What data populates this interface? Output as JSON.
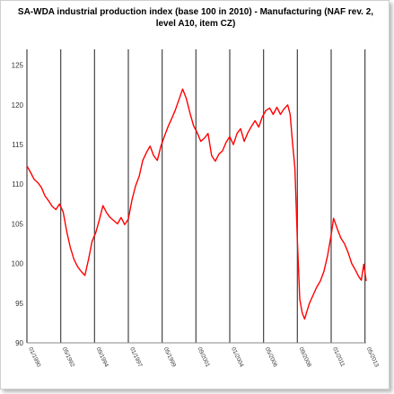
{
  "chart_data": {
    "type": "line",
    "title": "SA-WDA industrial production index (base 100 in 2010) - Manufacturing (NAF rev. 2, level A10, item CZ)",
    "xlabel": "",
    "ylabel": "",
    "ylim": [
      90,
      127
    ],
    "yticks": [
      90,
      95,
      100,
      105,
      110,
      115,
      120,
      125
    ],
    "x_range": [
      "1990-01",
      "2013-06"
    ],
    "xticks": [
      {
        "label": "01/1990",
        "date": "1990-01"
      },
      {
        "label": "05/1992",
        "date": "1992-05"
      },
      {
        "label": "09/1994",
        "date": "1994-09"
      },
      {
        "label": "01/1997",
        "date": "1997-01"
      },
      {
        "label": "05/1999",
        "date": "1999-05"
      },
      {
        "label": "09/2001",
        "date": "2001-09"
      },
      {
        "label": "01/2004",
        "date": "2004-01"
      },
      {
        "label": "05/2006",
        "date": "2006-05"
      },
      {
        "label": "09/2008",
        "date": "2008-09"
      },
      {
        "label": "01/2011",
        "date": "2011-01"
      },
      {
        "label": "05/2013",
        "date": "2013-05"
      }
    ],
    "grid": {
      "vertical": true,
      "horizontal": false
    },
    "legend": "none",
    "series": [
      {
        "color": "#ff0000",
        "points": [
          [
            "1990-01",
            112.3
          ],
          [
            "1990-04",
            111.5
          ],
          [
            "1990-07",
            110.6
          ],
          [
            "1990-10",
            110.2
          ],
          [
            "1991-01",
            109.6
          ],
          [
            "1991-04",
            108.5
          ],
          [
            "1991-07",
            107.9
          ],
          [
            "1991-10",
            107.2
          ],
          [
            "1992-01",
            106.8
          ],
          [
            "1992-04",
            107.5
          ],
          [
            "1992-07",
            106.5
          ],
          [
            "1992-10",
            104.0
          ],
          [
            "1993-01",
            102.0
          ],
          [
            "1993-04",
            100.5
          ],
          [
            "1993-07",
            99.6
          ],
          [
            "1993-10",
            99.0
          ],
          [
            "1994-01",
            98.5
          ],
          [
            "1994-04",
            100.5
          ],
          [
            "1994-07",
            102.8
          ],
          [
            "1994-10",
            103.9
          ],
          [
            "1995-01",
            105.5
          ],
          [
            "1995-04",
            107.3
          ],
          [
            "1995-07",
            106.4
          ],
          [
            "1995-10",
            105.8
          ],
          [
            "1996-01",
            105.4
          ],
          [
            "1996-04",
            105.0
          ],
          [
            "1996-07",
            105.8
          ],
          [
            "1996-10",
            104.9
          ],
          [
            "1997-01",
            105.6
          ],
          [
            "1997-04",
            108.0
          ],
          [
            "1997-07",
            109.8
          ],
          [
            "1997-10",
            111.0
          ],
          [
            "1998-01",
            113.0
          ],
          [
            "1998-04",
            114.0
          ],
          [
            "1998-07",
            114.8
          ],
          [
            "1998-10",
            113.6
          ],
          [
            "1999-01",
            113.0
          ],
          [
            "1999-04",
            114.8
          ],
          [
            "1999-07",
            116.1
          ],
          [
            "1999-10",
            117.3
          ],
          [
            "2000-01",
            118.3
          ],
          [
            "2000-04",
            119.4
          ],
          [
            "2000-07",
            120.7
          ],
          [
            "2000-10",
            122.0
          ],
          [
            "2001-01",
            120.8
          ],
          [
            "2001-04",
            119.0
          ],
          [
            "2001-07",
            117.4
          ],
          [
            "2001-10",
            116.5
          ],
          [
            "2002-01",
            115.4
          ],
          [
            "2002-04",
            115.8
          ],
          [
            "2002-07",
            116.4
          ],
          [
            "2002-10",
            113.6
          ],
          [
            "2003-01",
            112.9
          ],
          [
            "2003-04",
            113.8
          ],
          [
            "2003-07",
            114.2
          ],
          [
            "2003-10",
            115.3
          ],
          [
            "2004-01",
            116.0
          ],
          [
            "2004-04",
            115.0
          ],
          [
            "2004-07",
            116.4
          ],
          [
            "2004-10",
            117.0
          ],
          [
            "2005-01",
            115.4
          ],
          [
            "2005-04",
            116.5
          ],
          [
            "2005-07",
            117.3
          ],
          [
            "2005-10",
            118.0
          ],
          [
            "2006-01",
            117.2
          ],
          [
            "2006-04",
            118.5
          ],
          [
            "2006-07",
            119.3
          ],
          [
            "2006-10",
            119.6
          ],
          [
            "2007-01",
            118.8
          ],
          [
            "2007-04",
            119.7
          ],
          [
            "2007-07",
            118.8
          ],
          [
            "2007-10",
            119.5
          ],
          [
            "2008-01",
            120.0
          ],
          [
            "2008-03",
            118.8
          ],
          [
            "2008-05",
            115.3
          ],
          [
            "2008-07",
            112.0
          ],
          [
            "2008-09",
            103.0
          ],
          [
            "2008-11",
            95.5
          ],
          [
            "2009-01",
            93.8
          ],
          [
            "2009-03",
            93.0
          ],
          [
            "2009-07",
            95.0
          ],
          [
            "2009-10",
            96.0
          ],
          [
            "2010-01",
            97.0
          ],
          [
            "2010-04",
            97.8
          ],
          [
            "2010-07",
            99.0
          ],
          [
            "2010-10",
            101.0
          ],
          [
            "2011-01",
            103.6
          ],
          [
            "2011-03",
            105.7
          ],
          [
            "2011-06",
            104.4
          ],
          [
            "2011-09",
            103.2
          ],
          [
            "2011-12",
            102.5
          ],
          [
            "2012-03",
            101.4
          ],
          [
            "2012-06",
            100.0
          ],
          [
            "2012-09",
            99.2
          ],
          [
            "2012-12",
            98.3
          ],
          [
            "2013-02",
            97.9
          ],
          [
            "2013-04",
            99.9
          ],
          [
            "2013-06",
            97.8
          ]
        ]
      }
    ]
  }
}
